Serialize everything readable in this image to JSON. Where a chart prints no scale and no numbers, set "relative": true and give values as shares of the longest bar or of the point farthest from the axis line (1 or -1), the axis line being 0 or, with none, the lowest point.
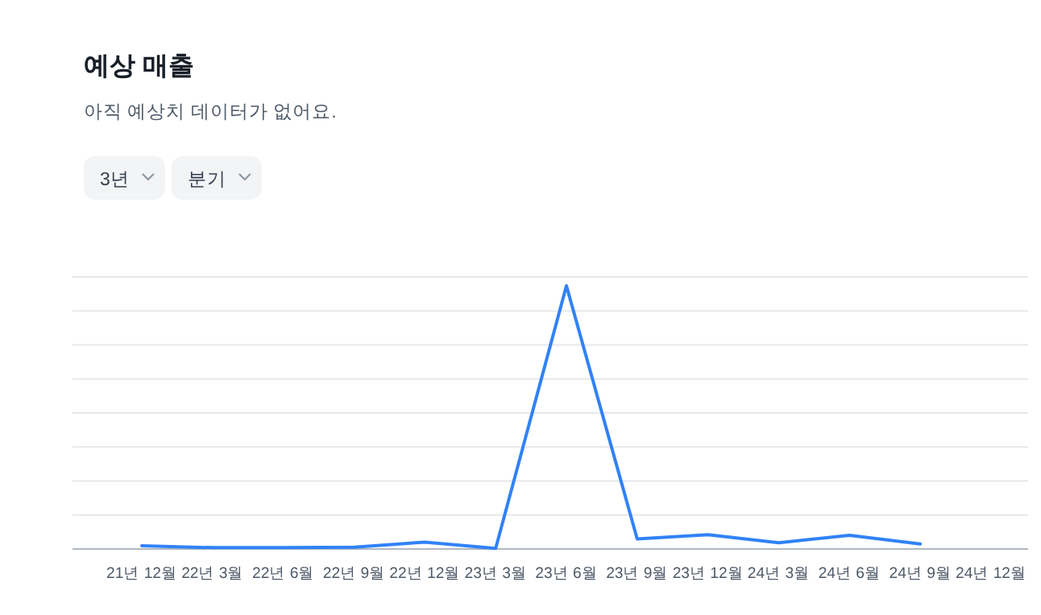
{
  "chart_data": {
    "type": "line",
    "title": "예상 매출",
    "subtitle": "아직 예상치 데이터가 없어요.",
    "annotations": [
      "3년",
      "분기"
    ],
    "categories": [
      "21년 12월",
      "22년 3월",
      "22년 6월",
      "22년 9월",
      "22년 12월",
      "23년 3월",
      "23년 6월",
      "23년 9월",
      "23년 12월",
      "24년 3월",
      "24년 6월",
      "24년 9월",
      "24년 12월"
    ],
    "relative": true,
    "grid": true,
    "marker": "none",
    "line_style": "solid",
    "series": [
      {
        "color": "#3182f6",
        "values": [
          0.012,
          0.005,
          0.005,
          0.007,
          0.026,
          0.002,
          1,
          0.038,
          0.054,
          0.024,
          0.052,
          0.019,
          null
        ]
      }
    ]
  }
}
